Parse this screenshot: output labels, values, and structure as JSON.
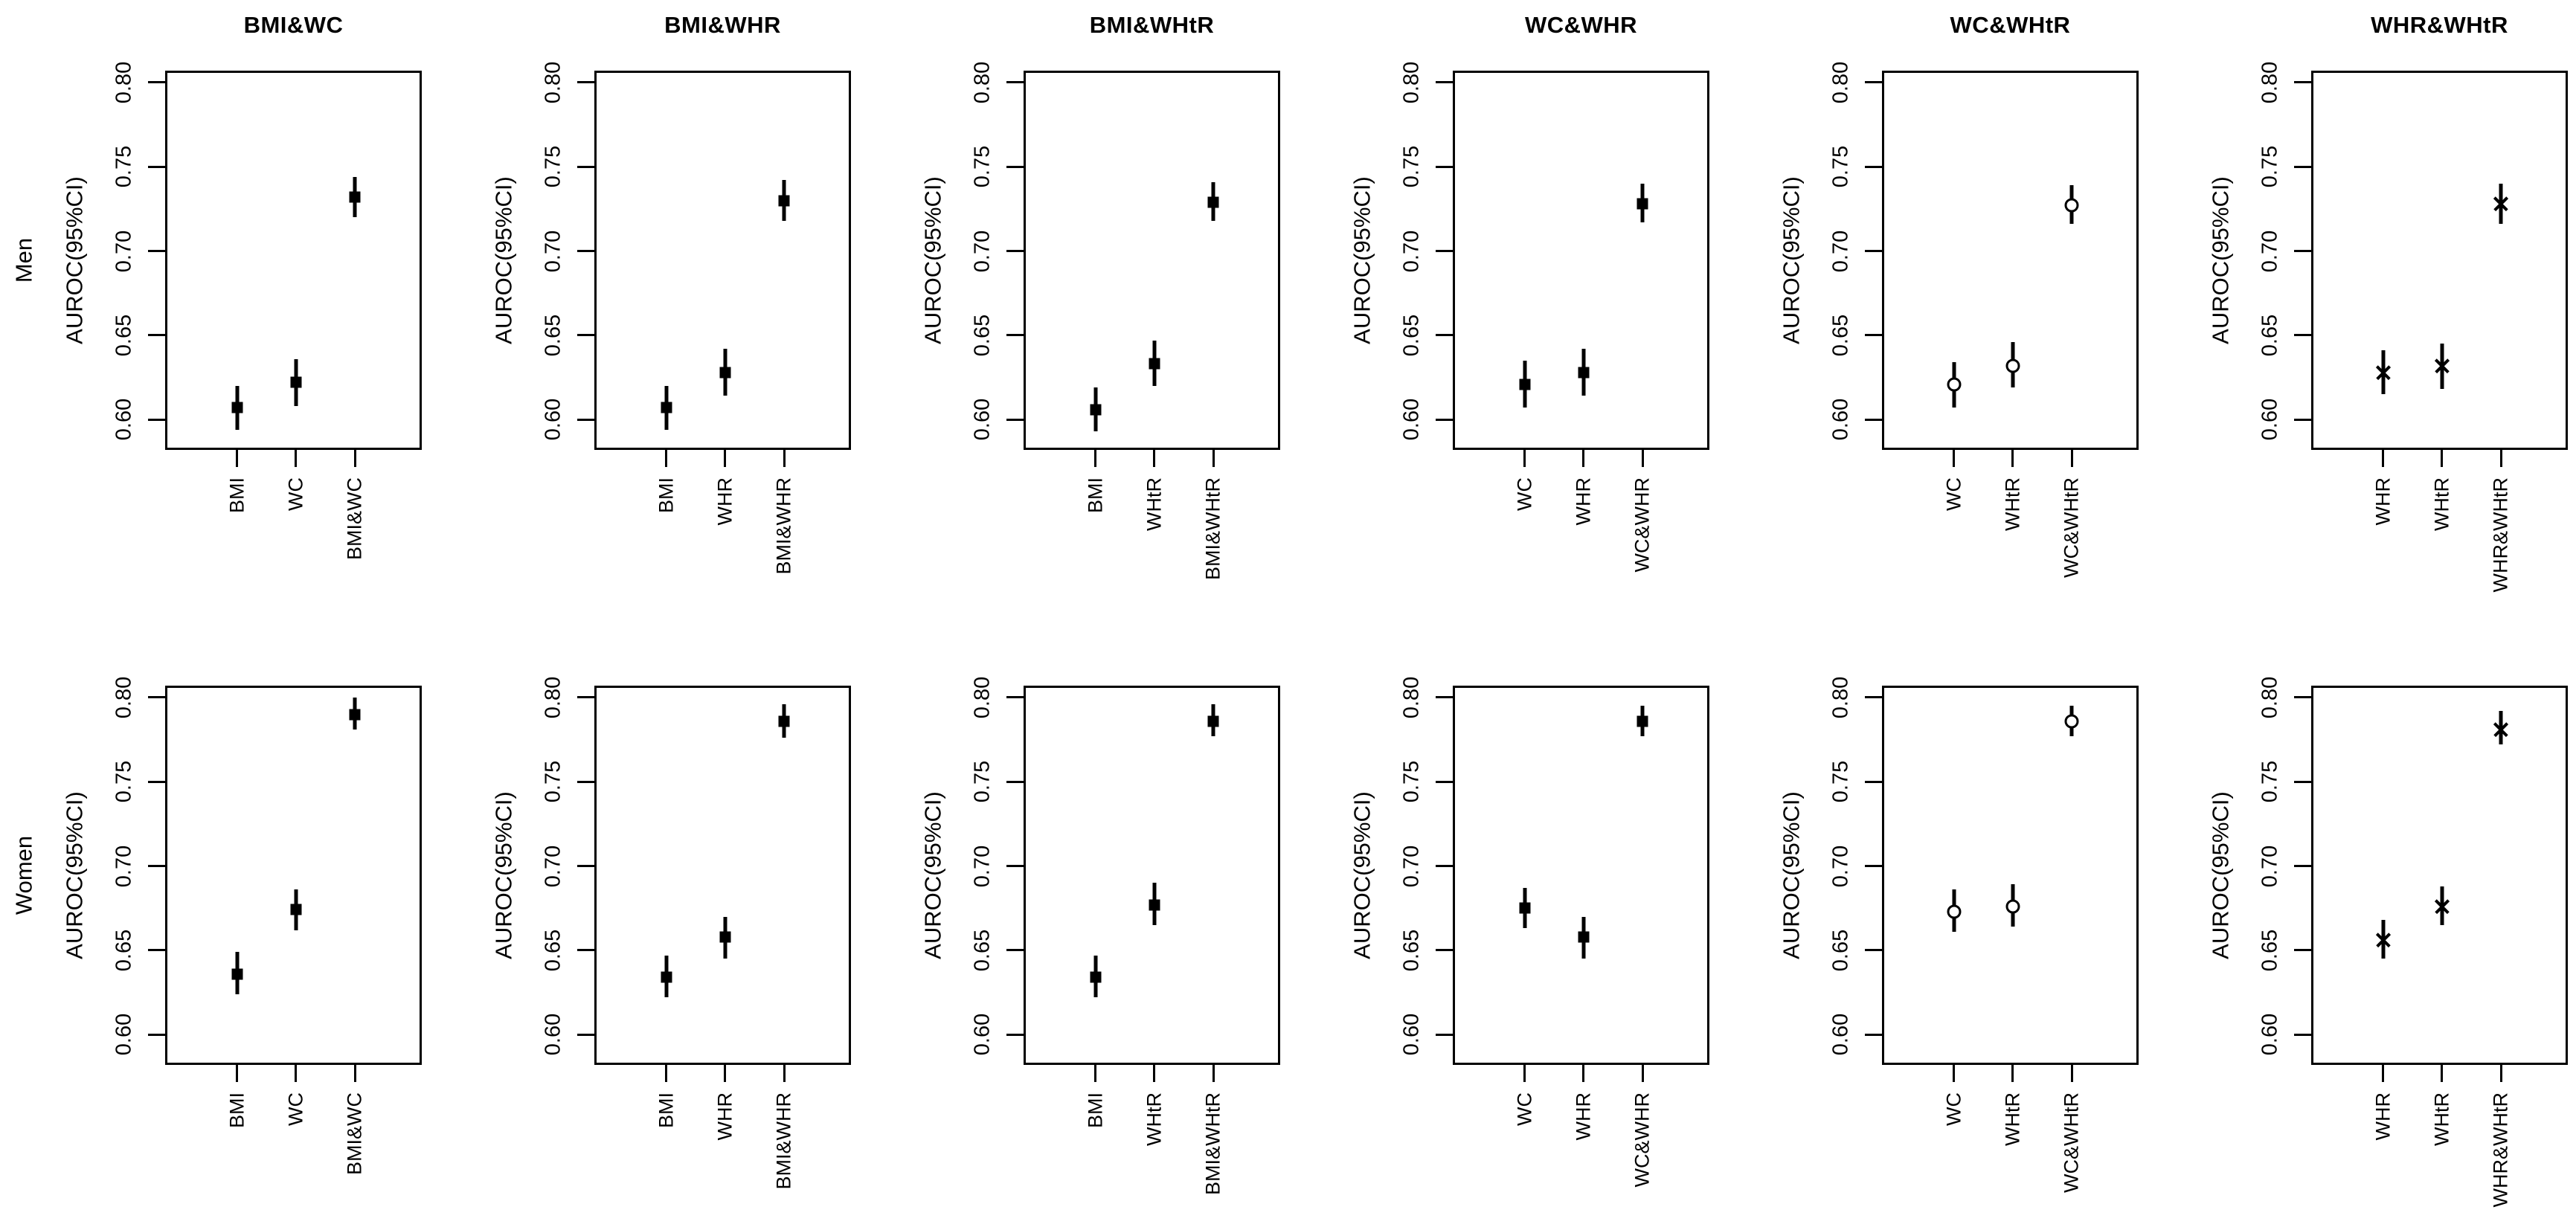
{
  "page": {
    "background": "#ffffff",
    "text_color": "#000000",
    "row_labels": [
      "Men",
      "Women"
    ],
    "column_titles": [
      "BMI&WC",
      "BMI&WHR",
      "BMI&WHtR",
      "WC&WHR",
      "WC&WHtR",
      "WHR&WHtR"
    ],
    "y_axis_label": "AUROC(95%CI)"
  },
  "chart_data": [
    {
      "type": "scatter",
      "row": "Men",
      "combo": "BMI&WC",
      "title": "BMI&WC",
      "ylabel": "AUROC(95%CI)",
      "ylim": [
        0.582,
        0.807
      ],
      "yticks": [
        "0.60",
        "0.65",
        "0.70",
        "0.75",
        "0.80"
      ],
      "grid": false,
      "symbol": "square",
      "categories": [
        "BMI",
        "WC",
        "BMI&WC"
      ],
      "values": [
        0.607,
        0.622,
        0.732
      ],
      "ci_low": [
        0.594,
        0.608,
        0.72
      ],
      "ci_high": [
        0.62,
        0.636,
        0.744
      ]
    },
    {
      "type": "scatter",
      "row": "Men",
      "combo": "BMI&WHR",
      "title": "BMI&WHR",
      "ylabel": "AUROC(95%CI)",
      "ylim": [
        0.582,
        0.807
      ],
      "yticks": [
        "0.60",
        "0.65",
        "0.70",
        "0.75",
        "0.80"
      ],
      "grid": false,
      "symbol": "square",
      "categories": [
        "BMI",
        "WHR",
        "BMI&WHR"
      ],
      "values": [
        0.607,
        0.628,
        0.73
      ],
      "ci_low": [
        0.594,
        0.614,
        0.718
      ],
      "ci_high": [
        0.62,
        0.642,
        0.742
      ]
    },
    {
      "type": "scatter",
      "row": "Men",
      "combo": "BMI&WHtR",
      "title": "BMI&WHtR",
      "ylabel": "AUROC(95%CI)",
      "ylim": [
        0.582,
        0.807
      ],
      "yticks": [
        "0.60",
        "0.65",
        "0.70",
        "0.75",
        "0.80"
      ],
      "grid": false,
      "symbol": "square",
      "categories": [
        "BMI",
        "WHtR",
        "BMI&WHtR"
      ],
      "values": [
        0.606,
        0.633,
        0.729
      ],
      "ci_low": [
        0.593,
        0.62,
        0.718
      ],
      "ci_high": [
        0.619,
        0.647,
        0.741
      ]
    },
    {
      "type": "scatter",
      "row": "Men",
      "combo": "WC&WHR",
      "title": "WC&WHR",
      "ylabel": "AUROC(95%CI)",
      "ylim": [
        0.582,
        0.807
      ],
      "yticks": [
        "0.60",
        "0.65",
        "0.70",
        "0.75",
        "0.80"
      ],
      "grid": false,
      "symbol": "square",
      "categories": [
        "WC",
        "WHR",
        "WC&WHR"
      ],
      "values": [
        0.621,
        0.628,
        0.728
      ],
      "ci_low": [
        0.607,
        0.614,
        0.717
      ],
      "ci_high": [
        0.635,
        0.642,
        0.74
      ]
    },
    {
      "type": "scatter",
      "row": "Men",
      "combo": "WC&WHtR",
      "title": "WC&WHtR",
      "ylabel": "AUROC(95%CI)",
      "ylim": [
        0.582,
        0.807
      ],
      "yticks": [
        "0.60",
        "0.65",
        "0.70",
        "0.75",
        "0.80"
      ],
      "grid": false,
      "symbol": "circle",
      "categories": [
        "WC",
        "WHtR",
        "WC&WHtR"
      ],
      "values": [
        0.621,
        0.632,
        0.727
      ],
      "ci_low": [
        0.607,
        0.619,
        0.716
      ],
      "ci_high": [
        0.634,
        0.646,
        0.739
      ]
    },
    {
      "type": "scatter",
      "row": "Men",
      "combo": "WHR&WHtR",
      "title": "WHR&WHtR",
      "ylabel": "AUROC(95%CI)",
      "ylim": [
        0.582,
        0.807
      ],
      "yticks": [
        "0.60",
        "0.65",
        "0.70",
        "0.75",
        "0.80"
      ],
      "grid": false,
      "symbol": "x",
      "categories": [
        "WHR",
        "WHtR",
        "WHR&WHtR"
      ],
      "values": [
        0.628,
        0.632,
        0.728
      ],
      "ci_low": [
        0.615,
        0.618,
        0.716
      ],
      "ci_high": [
        0.641,
        0.645,
        0.74
      ]
    },
    {
      "type": "scatter",
      "row": "Women",
      "combo": "BMI&WC",
      "title": "",
      "ylabel": "AUROC(95%CI)",
      "ylim": [
        0.582,
        0.807
      ],
      "yticks": [
        "0.60",
        "0.65",
        "0.70",
        "0.75",
        "0.80"
      ],
      "grid": false,
      "symbol": "square",
      "categories": [
        "BMI",
        "WC",
        "BMI&WC"
      ],
      "values": [
        0.636,
        0.674,
        0.79
      ],
      "ci_low": [
        0.624,
        0.662,
        0.781
      ],
      "ci_high": [
        0.649,
        0.686,
        0.8
      ]
    },
    {
      "type": "scatter",
      "row": "Women",
      "combo": "BMI&WHR",
      "title": "",
      "ylabel": "AUROC(95%CI)",
      "ylim": [
        0.582,
        0.807
      ],
      "yticks": [
        "0.60",
        "0.65",
        "0.70",
        "0.75",
        "0.80"
      ],
      "grid": false,
      "symbol": "square",
      "categories": [
        "BMI",
        "WHR",
        "BMI&WHR"
      ],
      "values": [
        0.634,
        0.658,
        0.786
      ],
      "ci_low": [
        0.622,
        0.645,
        0.776
      ],
      "ci_high": [
        0.647,
        0.67,
        0.796
      ]
    },
    {
      "type": "scatter",
      "row": "Women",
      "combo": "BMI&WHtR",
      "title": "",
      "ylabel": "AUROC(95%CI)",
      "ylim": [
        0.582,
        0.807
      ],
      "yticks": [
        "0.60",
        "0.65",
        "0.70",
        "0.75",
        "0.80"
      ],
      "grid": false,
      "symbol": "square",
      "categories": [
        "BMI",
        "WHtR",
        "BMI&WHtR"
      ],
      "values": [
        0.634,
        0.677,
        0.786
      ],
      "ci_low": [
        0.622,
        0.665,
        0.777
      ],
      "ci_high": [
        0.647,
        0.69,
        0.796
      ]
    },
    {
      "type": "scatter",
      "row": "Women",
      "combo": "WC&WHR",
      "title": "",
      "ylabel": "AUROC(95%CI)",
      "ylim": [
        0.582,
        0.807
      ],
      "yticks": [
        "0.60",
        "0.65",
        "0.70",
        "0.75",
        "0.80"
      ],
      "grid": false,
      "symbol": "square",
      "categories": [
        "WC",
        "WHR",
        "WC&WHR"
      ],
      "values": [
        0.675,
        0.658,
        0.786
      ],
      "ci_low": [
        0.663,
        0.645,
        0.777
      ],
      "ci_high": [
        0.687,
        0.67,
        0.795
      ]
    },
    {
      "type": "scatter",
      "row": "Women",
      "combo": "WC&WHtR",
      "title": "",
      "ylabel": "AUROC(95%CI)",
      "ylim": [
        0.582,
        0.807
      ],
      "yticks": [
        "0.60",
        "0.65",
        "0.70",
        "0.75",
        "0.80"
      ],
      "grid": false,
      "symbol": "circle",
      "categories": [
        "WC",
        "WHtR",
        "WC&WHtR"
      ],
      "values": [
        0.673,
        0.676,
        0.786
      ],
      "ci_low": [
        0.661,
        0.664,
        0.777
      ],
      "ci_high": [
        0.686,
        0.689,
        0.795
      ]
    },
    {
      "type": "scatter",
      "row": "Women",
      "combo": "WHR&WHtR",
      "title": "",
      "ylabel": "AUROC(95%CI)",
      "ylim": [
        0.582,
        0.807
      ],
      "yticks": [
        "0.60",
        "0.65",
        "0.70",
        "0.75",
        "0.80"
      ],
      "grid": false,
      "symbol": "x",
      "categories": [
        "WHR",
        "WHtR",
        "WHR&WHtR"
      ],
      "values": [
        0.656,
        0.676,
        0.781
      ],
      "ci_low": [
        0.645,
        0.665,
        0.772
      ],
      "ci_high": [
        0.668,
        0.688,
        0.792
      ]
    }
  ]
}
